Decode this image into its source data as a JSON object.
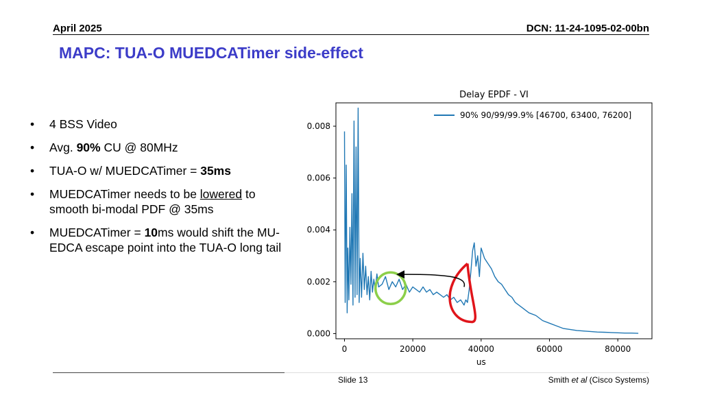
{
  "header": {
    "date": "April 2025",
    "dcn": "DCN: 11-24-1095-02-00bn"
  },
  "title": "MAPC: TUA-O MUEDCATimer side-effect",
  "bullets": [
    {
      "segments": [
        {
          "text": "4 BSS Video"
        }
      ]
    },
    {
      "segments": [
        {
          "text": "Avg. "
        },
        {
          "text": "90%",
          "bold": true
        },
        {
          "text": " CU @ 80MHz"
        }
      ]
    },
    {
      "segments": [
        {
          "text": "TUA-O w/ MUEDCATimer = "
        },
        {
          "text": "35ms",
          "bold": true
        }
      ]
    },
    {
      "segments": [
        {
          "text": "MUEDCATimer needs to be "
        },
        {
          "text": "lowered",
          "underline": true
        },
        {
          "text": " to smooth bi-modal PDF @ 35ms"
        }
      ]
    },
    {
      "segments": [
        {
          "text": "MUEDCATimer = "
        },
        {
          "text": "10",
          "bold": true
        },
        {
          "text": "ms would shift the MU-EDCA escape point into the TUA-O long tail"
        }
      ]
    }
  ],
  "footer": {
    "slide": "Slide 13",
    "author_pre": "Smith ",
    "author_em": "et al",
    "author_post": " (Cisco Systems)"
  },
  "chart_data": {
    "type": "line",
    "title": "Delay EPDF - VI",
    "xlabel": "us",
    "ylabel": "",
    "xlim": [
      -2500,
      90000
    ],
    "ylim": [
      -0.0002,
      0.0089
    ],
    "xticks": [
      0,
      20000,
      40000,
      60000,
      80000
    ],
    "xtick_labels": [
      "0",
      "20000",
      "40000",
      "60000",
      "80000"
    ],
    "yticks": [
      0.0,
      0.002,
      0.004,
      0.006,
      0.008
    ],
    "ytick_labels": [
      "0.000",
      "0.002",
      "0.004",
      "0.006",
      "0.008"
    ],
    "grid": false,
    "legend_position": "top-right",
    "series": [
      {
        "name": "90% 90/99/99.9% [46700, 63400, 76200]",
        "color": "#1f77b4",
        "x": [
          0,
          200,
          500,
          800,
          1000,
          1300,
          1600,
          1900,
          2200,
          2500,
          2800,
          3100,
          3400,
          3700,
          4000,
          4300,
          4600,
          5000,
          5400,
          5800,
          6200,
          6600,
          7000,
          7400,
          7800,
          8200,
          8600,
          9000,
          9500,
          10000,
          11000,
          12000,
          13000,
          14000,
          15000,
          16000,
          17000,
          18000,
          19000,
          20000,
          21000,
          22000,
          23000,
          24000,
          25000,
          26000,
          27000,
          28000,
          29000,
          30000,
          31000,
          32000,
          33000,
          34000,
          35000,
          35500,
          36000,
          36500,
          37000,
          37500,
          38000,
          38500,
          39000,
          39500,
          40000,
          41000,
          42000,
          43000,
          44000,
          45000,
          46000,
          47000,
          48000,
          49000,
          50000,
          52000,
          54000,
          56000,
          58000,
          60000,
          62000,
          64000,
          66000,
          68000,
          70000,
          72000,
          74000,
          76000,
          78000,
          80000,
          82000,
          84000,
          86000
        ],
        "values": [
          0.0078,
          0.0012,
          0.0065,
          0.0008,
          0.0033,
          0.0013,
          0.0041,
          0.0019,
          0.0054,
          0.0011,
          0.0082,
          0.0014,
          0.0072,
          0.0015,
          0.0087,
          0.0012,
          0.0029,
          0.0014,
          0.0031,
          0.0017,
          0.0026,
          0.0015,
          0.0022,
          0.0013,
          0.0024,
          0.0016,
          0.0021,
          0.0017,
          0.0023,
          0.0018,
          0.0019,
          0.0022,
          0.0017,
          0.002,
          0.0018,
          0.0021,
          0.0017,
          0.0019,
          0.0016,
          0.0018,
          0.0017,
          0.0016,
          0.0018,
          0.0016,
          0.0017,
          0.0015,
          0.0016,
          0.0015,
          0.0014,
          0.0015,
          0.0013,
          0.0014,
          0.0012,
          0.0013,
          0.0011,
          0.0013,
          0.0012,
          0.0017,
          0.0024,
          0.0032,
          0.0035,
          0.0026,
          0.003,
          0.0022,
          0.0033,
          0.0029,
          0.0027,
          0.0025,
          0.0022,
          0.002,
          0.0019,
          0.0017,
          0.0015,
          0.0014,
          0.0012,
          0.001,
          0.0008,
          0.0007,
          0.0005,
          0.0004,
          0.0003,
          0.0002,
          0.00016,
          0.00012,
          0.0001,
          8e-05,
          6e-05,
          5e-05,
          4e-05,
          3e-05,
          2e-05,
          2e-05,
          1e-05
        ]
      }
    ]
  }
}
